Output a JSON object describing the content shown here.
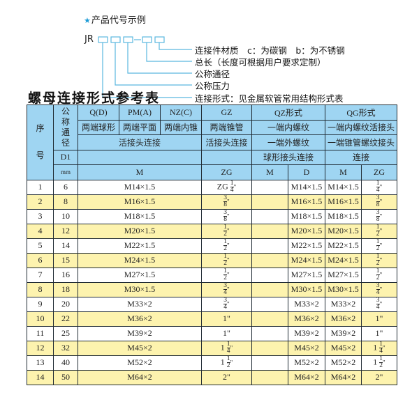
{
  "code_example": {
    "title": "产品代号示例",
    "prefix": "JR",
    "labels": [
      "连接件材质　c：为碳钢　b：为不锈钢",
      "总长（长度可根据用户要求定制）",
      "公称通径",
      "公称压力",
      "连接形式：见金属软管常用结构形式表"
    ],
    "box_color": "#5ab8df"
  },
  "table_title": "螺母连接形式参考表",
  "header": {
    "seq": "序\n\n\n号",
    "nominal": "公\n称\n通\n径",
    "d1": "D1",
    "mm": "mm",
    "row1": [
      "Q(D)",
      "PM(A)",
      "NZ(C)",
      "GZ",
      "QZ形式",
      "QG形式"
    ],
    "row2": [
      "两端球形",
      "两端平面",
      "两端内锥",
      "两端锥管",
      "一端内螺纹",
      "一端内螺纹活接头"
    ],
    "row3": [
      "活接头连接",
      "活接头连接",
      "一端外螺纹",
      "一端锥管螺纹接头"
    ],
    "row4": [
      "",
      "",
      "球形接头连接",
      "连接"
    ],
    "row5": [
      "M",
      "ZG",
      "M",
      "D",
      "M",
      "ZG"
    ]
  },
  "colors": {
    "header_bg": "#9fd5f2",
    "alt_row_bg": "#fdf3ae",
    "star": "#1a9ad6"
  },
  "rows": [
    {
      "no": "1",
      "d": "6",
      "m": "M14×1.5",
      "zg": {
        "pre": "ZG ",
        "num": "1",
        "den": "4",
        "suf": "\""
      },
      "qz_m": "",
      "qz_d": "M14×1.5",
      "qg_m": "M14×1.5",
      "qg_zg": {
        "pre": "",
        "num": "1",
        "den": "4",
        "suf": "\""
      }
    },
    {
      "no": "2",
      "d": "8",
      "m": "M16×1.5",
      "zg": {
        "pre": "",
        "num": "3",
        "den": "8",
        "suf": "\""
      },
      "qz_m": "",
      "qz_d": "M16×1.5",
      "qg_m": "M16×1.5",
      "qg_zg": {
        "pre": "",
        "num": "3",
        "den": "8",
        "suf": "\""
      }
    },
    {
      "no": "3",
      "d": "10",
      "m": "M18×1.5",
      "zg": {
        "pre": "",
        "num": "3",
        "den": "8",
        "suf": "\""
      },
      "qz_m": "",
      "qz_d": "M18×1.5",
      "qg_m": "M18×1.5",
      "qg_zg": {
        "pre": "",
        "num": "3",
        "den": "8",
        "suf": "\""
      }
    },
    {
      "no": "4",
      "d": "12",
      "m": "M20×1.5",
      "zg": {
        "pre": "",
        "num": "1",
        "den": "2",
        "suf": "\""
      },
      "qz_m": "",
      "qz_d": "M20×1.5",
      "qg_m": "M20×1.5",
      "qg_zg": {
        "pre": "",
        "num": "1",
        "den": "2",
        "suf": "\""
      }
    },
    {
      "no": "5",
      "d": "14",
      "m": "M22×1.5",
      "zg": {
        "pre": "",
        "num": "1",
        "den": "2",
        "suf": "\""
      },
      "qz_m": "",
      "qz_d": "M22×1.5",
      "qg_m": "M22×1.5",
      "qg_zg": {
        "pre": "",
        "num": "1",
        "den": "2",
        "suf": "\""
      }
    },
    {
      "no": "6",
      "d": "15",
      "m": "M24×1.5",
      "zg": {
        "pre": "",
        "num": "1",
        "den": "2",
        "suf": "\""
      },
      "qz_m": "",
      "qz_d": "M24×1.5",
      "qg_m": "M24×1.5",
      "qg_zg": {
        "pre": "",
        "num": "1",
        "den": "2",
        "suf": "\""
      }
    },
    {
      "no": "7",
      "d": "16",
      "m": "M27×1.5",
      "zg": {
        "pre": "",
        "num": "1",
        "den": "2",
        "suf": "\""
      },
      "qz_m": "",
      "qz_d": "M27×1.5",
      "qg_m": "M27×1.5",
      "qg_zg": {
        "pre": "",
        "num": "1",
        "den": "2",
        "suf": "\""
      }
    },
    {
      "no": "8",
      "d": "18",
      "m": "M30×1.5",
      "zg": {
        "pre": "",
        "num": "3",
        "den": "4",
        "suf": "\""
      },
      "qz_m": "",
      "qz_d": "M30×1.5",
      "qg_m": "M30×1.5",
      "qg_zg": {
        "pre": "",
        "num": "3",
        "den": "4",
        "suf": "\""
      }
    },
    {
      "no": "9",
      "d": "20",
      "m": "M33×2",
      "zg": {
        "pre": "",
        "num": "3",
        "den": "4",
        "suf": "\""
      },
      "qz_m": "",
      "qz_d": "M33×2",
      "qg_m": "M33×2",
      "qg_zg": {
        "pre": "",
        "num": "3",
        "den": "4",
        "suf": "\""
      }
    },
    {
      "no": "10",
      "d": "22",
      "m": "M36×2",
      "zg": {
        "pre": "1\"",
        "num": "",
        "den": "",
        "suf": ""
      },
      "qz_m": "",
      "qz_d": "M36×2",
      "qg_m": "M36×2",
      "qg_zg": {
        "pre": "1\"",
        "num": "",
        "den": "",
        "suf": ""
      }
    },
    {
      "no": "11",
      "d": "25",
      "m": "M39×2",
      "zg": {
        "pre": "1\"",
        "num": "",
        "den": "",
        "suf": ""
      },
      "qz_m": "",
      "qz_d": "M39×2",
      "qg_m": "M39×2",
      "qg_zg": {
        "pre": "1\"",
        "num": "",
        "den": "",
        "suf": ""
      }
    },
    {
      "no": "12",
      "d": "32",
      "m": "M45×2",
      "zg": {
        "pre": "1 ",
        "num": "1",
        "den": "4",
        "suf": "\""
      },
      "qz_m": "",
      "qz_d": "M45×2",
      "qg_m": "M45×2",
      "qg_zg": {
        "pre": "1 ",
        "num": "1",
        "den": "4",
        "suf": "\""
      }
    },
    {
      "no": "13",
      "d": "40",
      "m": "M52×2",
      "zg": {
        "pre": "1 ",
        "num": "1",
        "den": "2",
        "suf": "\""
      },
      "qz_m": "",
      "qz_d": "M52×2",
      "qg_m": "M52×2",
      "qg_zg": {
        "pre": "1 ",
        "num": "1",
        "den": "2",
        "suf": "\""
      }
    },
    {
      "no": "14",
      "d": "50",
      "m": "M64×2",
      "zg": {
        "pre": "2\"",
        "num": "",
        "den": "",
        "suf": ""
      },
      "qz_m": "",
      "qz_d": "M64×2",
      "qg_m": "M64×2",
      "qg_zg": {
        "pre": "2\"",
        "num": "",
        "den": "",
        "suf": ""
      }
    }
  ]
}
